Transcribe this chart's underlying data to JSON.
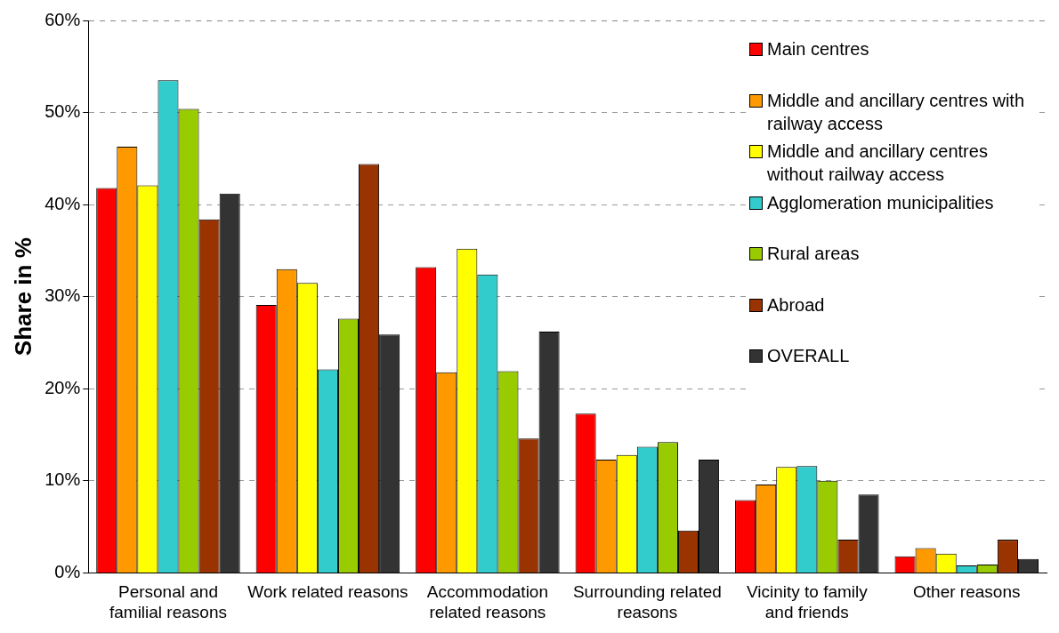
{
  "chart_data": {
    "type": "bar",
    "ylabel": "Share in %",
    "categories": [
      "Personal and familial reasons",
      "Work related reasons",
      "Accommodation related reasons",
      "Surrounding related reasons",
      "Vicinity to family and friends",
      "Other reasons"
    ],
    "series": [
      {
        "name": "Main centres",
        "color": "#ff0000",
        "values": [
          41.8,
          29.1,
          33.2,
          17.3,
          7.9,
          1.8
        ]
      },
      {
        "name": "Middle and ancillary centres with railway access",
        "color": "#ff9900",
        "values": [
          46.3,
          33.0,
          21.8,
          12.3,
          9.6,
          2.7
        ]
      },
      {
        "name": "Middle and ancillary centres without railway access",
        "color": "#ffff00",
        "values": [
          42.1,
          31.5,
          35.2,
          12.8,
          11.5,
          2.1
        ]
      },
      {
        "name": "Agglomeration municipalities",
        "color": "#33cccc",
        "values": [
          53.5,
          22.1,
          32.4,
          13.7,
          11.6,
          0.8
        ]
      },
      {
        "name": "Rural areas",
        "color": "#99cc00",
        "values": [
          50.4,
          27.6,
          21.9,
          14.2,
          10.0,
          0.9
        ]
      },
      {
        "name": "Abroad",
        "color": "#993300",
        "values": [
          38.4,
          44.4,
          14.6,
          4.6,
          3.6,
          3.6
        ]
      },
      {
        "name": "OVERALL",
        "color": "#333333",
        "values": [
          41.2,
          25.9,
          26.2,
          12.3,
          8.5,
          1.5
        ]
      }
    ],
    "ylim": [
      0,
      60
    ],
    "yticks": [
      {
        "value": 0,
        "label": "0%"
      },
      {
        "value": 10,
        "label": "10%"
      },
      {
        "value": 20,
        "label": "20%"
      },
      {
        "value": 30,
        "label": "30%"
      },
      {
        "value": 40,
        "label": "40%"
      },
      {
        "value": 50,
        "label": "50%"
      },
      {
        "value": 60,
        "label": "60%"
      }
    ],
    "grid": "y",
    "legend": "top right"
  }
}
